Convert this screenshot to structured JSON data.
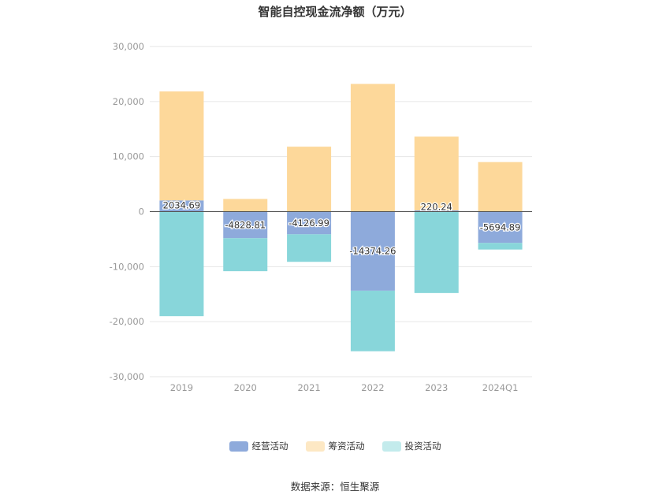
{
  "chart_data": {
    "type": "bar",
    "stacked": true,
    "title": "智能自控现金流净额（万元）",
    "categories": [
      "2019",
      "2020",
      "2021",
      "2022",
      "2023",
      "2024Q1"
    ],
    "ylim": [
      -30000,
      30000
    ],
    "yticks": [
      30000,
      20000,
      10000,
      0,
      -10000,
      -20000,
      -30000
    ],
    "ytick_labels": [
      "30,000",
      "20,000",
      "10,000",
      "0",
      "-10,000",
      "-20,000",
      "-30,000"
    ],
    "grid": true,
    "legend_position": "bottom",
    "series": [
      {
        "name": "经营活动",
        "color": "#8eaadb",
        "values": [
          2034.69,
          -4828.81,
          -4126.99,
          -14374.26,
          220.24,
          -5694.89
        ],
        "labels": [
          "2034.69",
          "-4828.81",
          "-4126.99",
          "-14374.26",
          "220.24",
          "-5694.89"
        ]
      },
      {
        "name": "筹资活动",
        "color": "#fdd89a",
        "values": [
          19800,
          2300,
          11800,
          23200,
          13400,
          9000
        ]
      },
      {
        "name": "投资活动",
        "color": "#88d6da",
        "values": [
          -19000,
          -6000,
          -5000,
          -11000,
          -14800,
          -1200
        ]
      }
    ]
  },
  "legend_colors": {
    "经营活动": "#8eaadb",
    "筹资活动": "#fde8c4",
    "投资活动": "#c3ebec"
  },
  "source": "数据来源：恒生聚源"
}
